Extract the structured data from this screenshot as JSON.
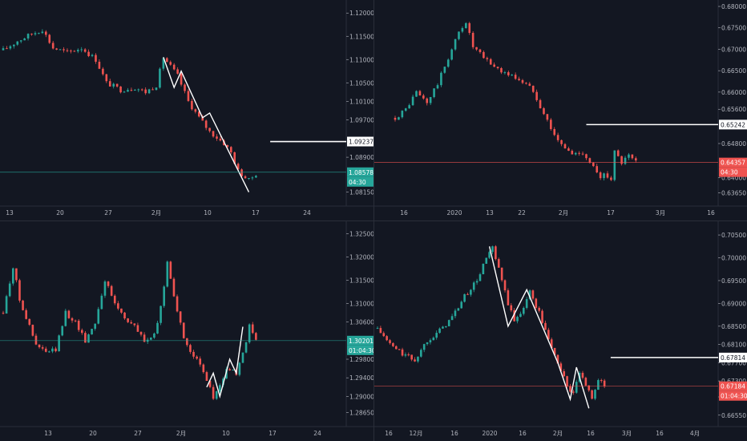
{
  "colors": {
    "background": "#131722",
    "axis_text": "#b2b5be",
    "up_candle": "#26a69a",
    "down_candle": "#ef5350",
    "pattern_line": "#ffffff",
    "price_line_green": "#26a69a",
    "price_line_red": "#ef5350",
    "grid_border": "#2a2e39"
  },
  "chart_data": [
    {
      "type": "candlestick",
      "panel": "top-left",
      "x_ticks": [
        "13",
        "20",
        "27",
        "2月",
        "10",
        "17",
        "24"
      ],
      "y_ticks": [
        "1.12000",
        "1.11500",
        "1.11000",
        "1.10500",
        "1.10100",
        "1.09700",
        "1.09237",
        "1.08900",
        "1.08578",
        "1.08150"
      ],
      "ylim": [
        1.0785,
        1.1228
      ],
      "path": [
        [
          0,
          1.112
        ],
        [
          4,
          1.114
        ],
        [
          8,
          1.1155
        ],
        [
          11,
          1.1165
        ],
        [
          14,
          1.1125
        ],
        [
          18,
          1.1115
        ],
        [
          22,
          1.1125
        ],
        [
          26,
          1.11
        ],
        [
          29,
          1.105
        ],
        [
          33,
          1.1035
        ],
        [
          37,
          1.104
        ],
        [
          40,
          1.103
        ],
        [
          43,
          1.1045
        ],
        [
          45,
          1.1105
        ],
        [
          49,
          1.1065
        ],
        [
          52,
          1.101
        ],
        [
          55,
          1.0975
        ],
        [
          58,
          1.0945
        ],
        [
          62,
          1.092
        ],
        [
          64,
          1.09
        ],
        [
          66,
          1.086
        ],
        [
          69,
          1.084
        ],
        [
          71,
          1.0855
        ]
      ],
      "zigzag": [
        [
          45,
          1.1105
        ],
        [
          48,
          1.104
        ],
        [
          50,
          1.1075
        ],
        [
          56,
          1.0975
        ],
        [
          58,
          1.0985
        ],
        [
          69,
          1.0815
        ]
      ],
      "resistance_line": {
        "value": 1.09237,
        "x_start": 75,
        "label": "1.09237"
      },
      "last_price": {
        "value": 1.08578,
        "label": "1.08578",
        "countdown": "04:30"
      }
    },
    {
      "type": "candlestick",
      "panel": "top-right",
      "x_ticks": [
        "16",
        "2020",
        "13",
        "22",
        "2月",
        "17",
        "3月",
        "16"
      ],
      "y_ticks": [
        "0.68000",
        "0.67500",
        "0.67000",
        "0.66500",
        "0.66000",
        "0.65600",
        "0.65242",
        "0.64800",
        "0.64357",
        "0.64000",
        "0.63650"
      ],
      "ylim": [
        0.6334,
        0.6815
      ],
      "path": [
        [
          0,
          0.654
        ],
        [
          3,
          0.656
        ],
        [
          6,
          0.66
        ],
        [
          9,
          0.6575
        ],
        [
          12,
          0.662
        ],
        [
          15,
          0.668
        ],
        [
          18,
          0.674
        ],
        [
          20,
          0.6765
        ],
        [
          22,
          0.6705
        ],
        [
          25,
          0.668
        ],
        [
          28,
          0.666
        ],
        [
          31,
          0.6645
        ],
        [
          35,
          0.663
        ],
        [
          39,
          0.6605
        ],
        [
          42,
          0.655
        ],
        [
          46,
          0.6485
        ],
        [
          50,
          0.6455
        ],
        [
          53,
          0.646
        ],
        [
          56,
          0.6425
        ],
        [
          58,
          0.6395
        ],
        [
          59,
          0.641
        ],
        [
          61,
          0.64
        ],
        [
          62,
          0.646
        ],
        [
          64,
          0.6435
        ],
        [
          66,
          0.645
        ],
        [
          68,
          0.6436
        ]
      ],
      "resistance_line": {
        "value": 0.65242,
        "x_start": 54,
        "label": "0.65242"
      },
      "last_price": {
        "value": 0.64357,
        "label": "0.64357",
        "countdown": "04:30"
      }
    },
    {
      "type": "candlestick",
      "panel": "bottom-left",
      "x_ticks": [
        "13",
        "20",
        "27",
        "2月",
        "10",
        "17",
        "24"
      ],
      "y_ticks": [
        "1.32500",
        "1.32000",
        "1.31500",
        "1.31000",
        "1.30600",
        "1.30201",
        "1.29800",
        "1.29400",
        "1.29000",
        "1.28650"
      ],
      "ylim": [
        1.2835,
        1.3277
      ],
      "path": [
        [
          0,
          1.308
        ],
        [
          3,
          1.318
        ],
        [
          5,
          1.311
        ],
        [
          8,
          1.305
        ],
        [
          10,
          1.301
        ],
        [
          13,
          1.2995
        ],
        [
          16,
          1.3
        ],
        [
          19,
          1.308
        ],
        [
          22,
          1.306
        ],
        [
          25,
          1.302
        ],
        [
          28,
          1.306
        ],
        [
          31,
          1.315
        ],
        [
          34,
          1.31
        ],
        [
          37,
          1.307
        ],
        [
          40,
          1.305
        ],
        [
          43,
          1.302
        ],
        [
          46,
          1.303
        ],
        [
          48,
          1.309
        ],
        [
          50,
          1.319
        ],
        [
          52,
          1.312
        ],
        [
          55,
          1.302
        ],
        [
          58,
          1.299
        ],
        [
          61,
          1.295
        ],
        [
          64,
          1.29
        ],
        [
          66,
          1.292
        ],
        [
          68,
          1.296
        ],
        [
          71,
          1.295
        ],
        [
          73,
          1.299
        ],
        [
          75,
          1.305
        ],
        [
          77,
          1.302
        ]
      ],
      "zigzag": [
        [
          62,
          1.292
        ],
        [
          64,
          1.295
        ],
        [
          66,
          1.29
        ],
        [
          69,
          1.298
        ],
        [
          71,
          1.295
        ],
        [
          73,
          1.305
        ]
      ],
      "last_price": {
        "value": 1.30201,
        "label": "1.30201",
        "countdown": "01:04:30"
      }
    },
    {
      "type": "candlestick",
      "panel": "bottom-right",
      "x_ticks": [
        "16",
        "12月",
        "16",
        "2020",
        "16",
        "2月",
        "16",
        "3月",
        "16",
        "4月"
      ],
      "y_ticks": [
        "0.70500",
        "0.70000",
        "0.69500",
        "0.69000",
        "0.68500",
        "0.68100",
        "0.67814",
        "0.67700",
        "0.67300",
        "0.67184",
        "0.66950",
        "0.66550"
      ],
      "ylim": [
        0.663,
        0.708
      ],
      "path": [
        [
          0,
          0.6845
        ],
        [
          4,
          0.681
        ],
        [
          8,
          0.679
        ],
        [
          12,
          0.6775
        ],
        [
          16,
          0.682
        ],
        [
          20,
          0.684
        ],
        [
          24,
          0.687
        ],
        [
          28,
          0.6915
        ],
        [
          32,
          0.695
        ],
        [
          35,
          0.7
        ],
        [
          37,
          0.702
        ],
        [
          40,
          0.695
        ],
        [
          42,
          0.69
        ],
        [
          44,
          0.686
        ],
        [
          46,
          0.688
        ],
        [
          49,
          0.6925
        ],
        [
          52,
          0.688
        ],
        [
          55,
          0.682
        ],
        [
          58,
          0.677
        ],
        [
          61,
          0.672
        ],
        [
          63,
          0.67
        ],
        [
          65,
          0.675
        ],
        [
          67,
          0.6715
        ],
        [
          69,
          0.6695
        ],
        [
          71,
          0.6735
        ],
        [
          73,
          0.6718
        ]
      ],
      "zigzag": [
        [
          36,
          0.7025
        ],
        [
          42,
          0.685
        ],
        [
          48,
          0.693
        ],
        [
          58,
          0.677
        ],
        [
          62,
          0.669
        ],
        [
          64,
          0.676
        ],
        [
          68,
          0.667
        ]
      ],
      "resistance_line": {
        "value": 0.67814,
        "x_start": 75,
        "label": "0.67814"
      },
      "last_price": {
        "value": 0.67184,
        "label": "0.67184",
        "countdown": "01:04:30"
      }
    }
  ]
}
